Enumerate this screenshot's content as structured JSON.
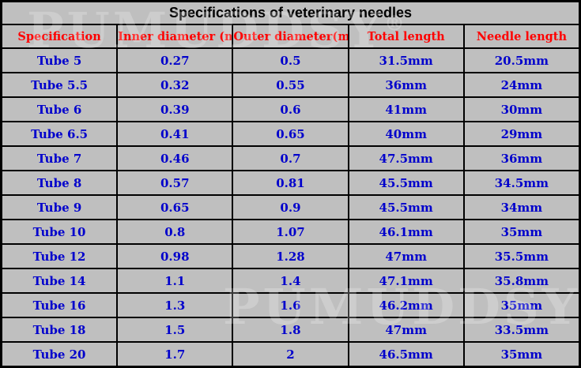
{
  "table": {
    "title": "Specifications of veterinary needles",
    "headers": [
      "Specification",
      "Inner diameter (mm)",
      "Outer diameter(mm)",
      "Total length",
      "Needle length"
    ],
    "rows": [
      [
        "Tube 5",
        "0.27",
        "0.5",
        "31.5mm",
        "20.5mm"
      ],
      [
        "Tube 5.5",
        "0.32",
        "0.55",
        "36mm",
        "24mm"
      ],
      [
        "Tube 6",
        "0.39",
        "0.6",
        "41mm",
        "30mm"
      ],
      [
        "Tube 6.5",
        "0.41",
        "0.65",
        "40mm",
        "29mm"
      ],
      [
        "Tube 7",
        "0.46",
        "0.7",
        "47.5mm",
        "36mm"
      ],
      [
        "Tube 8",
        "0.57",
        "0.81",
        "45.5mm",
        "34.5mm"
      ],
      [
        "Tube 9",
        "0.65",
        "0.9",
        "45.5mm",
        "34mm"
      ],
      [
        "Tube 10",
        "0.8",
        "1.07",
        "46.1mm",
        "35mm"
      ],
      [
        "Tube 12",
        "0.98",
        "1.28",
        "47mm",
        "35.5mm"
      ],
      [
        "Tube 14",
        "1.1",
        "1.4",
        "47.1mm",
        "35.8mm"
      ],
      [
        "Tube 16",
        "1.3",
        "1.6",
        "46.2mm",
        "35mm"
      ],
      [
        "Tube 18",
        "1.5",
        "1.8",
        "47mm",
        "33.5mm"
      ],
      [
        "Tube 20",
        "1.7",
        "2",
        "46.5mm",
        "35mm"
      ]
    ]
  },
  "watermark": {
    "text": "PUMUDDSY",
    "mark": "®"
  },
  "colors": {
    "header_text": "#ff0000",
    "body_text": "#0000cc",
    "cell_background": "#bfbfbf",
    "grid": "#000000"
  }
}
